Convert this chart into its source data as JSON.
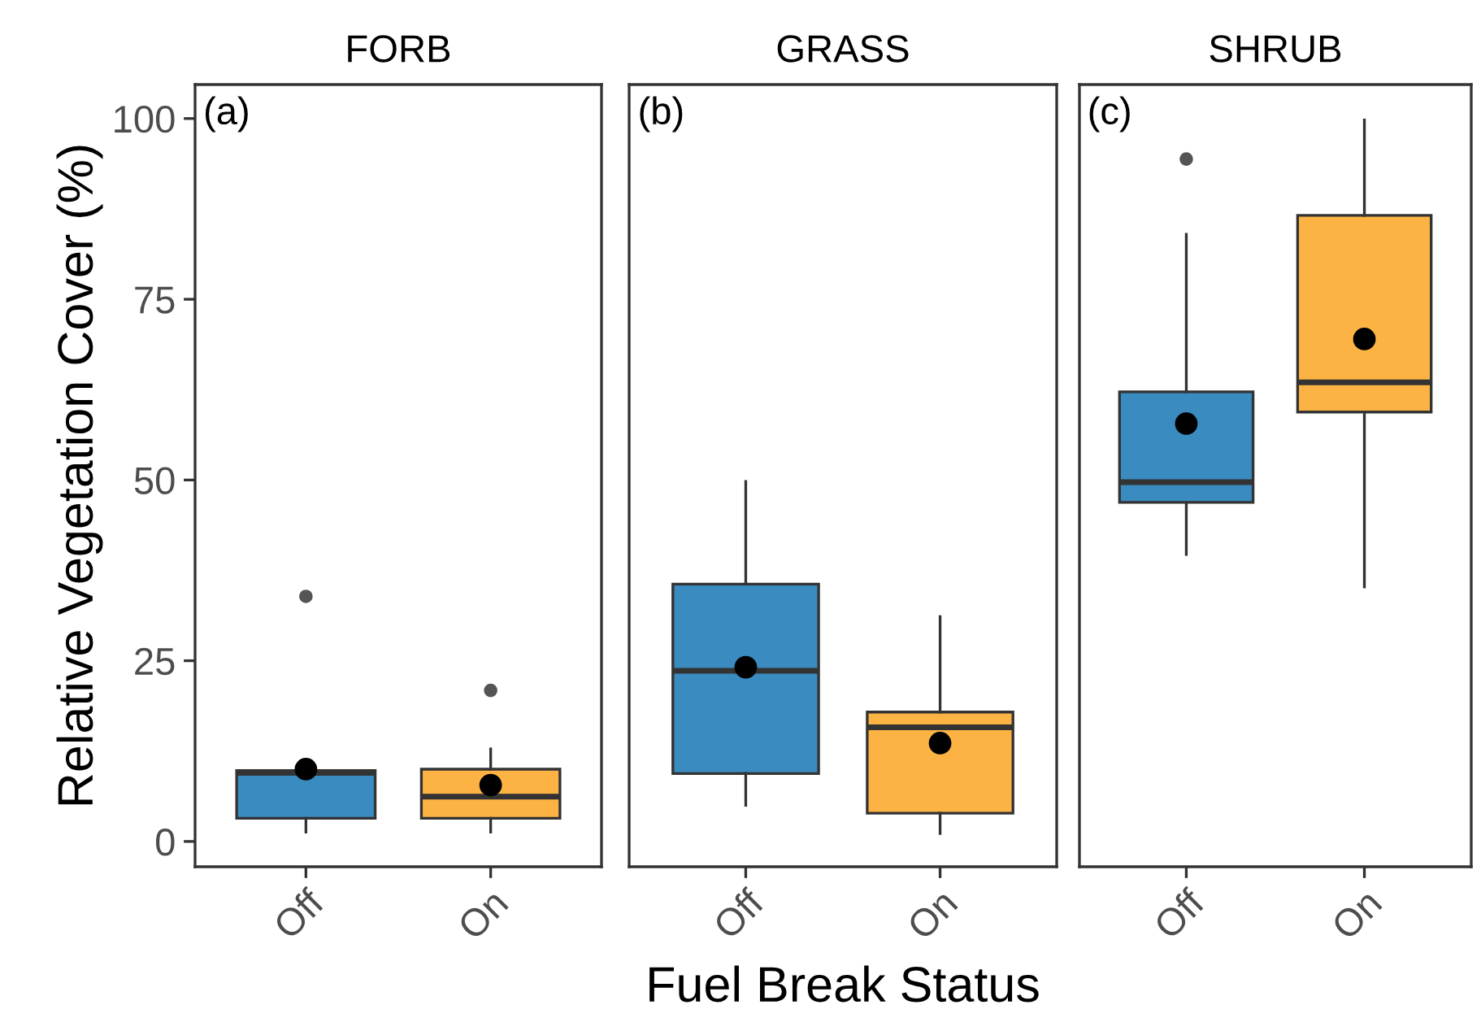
{
  "chart_data": [
    {
      "type": "box",
      "title": "FORB",
      "ylabel": "Relative Vegetation Cover (%)",
      "annotations": [
        "(a)"
      ],
      "categories": [
        "Off",
        "On"
      ],
      "colors": [
        "#3a8bc0",
        "#fdb344"
      ],
      "ylim": [
        -3.5,
        104.7
      ],
      "yticks": [
        0,
        25,
        50,
        75,
        100
      ],
      "grid": false,
      "boxes": [
        {
          "low": 1.3,
          "q1": 3.2,
          "median": 9.5,
          "q3": 9.8,
          "high": 9.8,
          "mean": 10.0,
          "outliers": [
            33.9
          ]
        },
        {
          "low": 1.3,
          "q1": 3.2,
          "median": 6.2,
          "q3": 10.0,
          "high": 12.8,
          "mean": 7.8,
          "outliers": [
            20.9
          ]
        }
      ]
    },
    {
      "type": "box",
      "title": "GRASS",
      "xlabel": "Fuel Break Status",
      "annotations": [
        "(b)"
      ],
      "categories": [
        "Off",
        "On"
      ],
      "colors": [
        "#3a8bc0",
        "#fdb344"
      ],
      "ylim": [
        -3.5,
        104.7
      ],
      "tick_labels": "x",
      "grid": false,
      "boxes": [
        {
          "low": 5.0,
          "q1": 9.4,
          "median": 23.6,
          "q3": 35.6,
          "high": 49.8,
          "mean": 24.1
        },
        {
          "low": 1.1,
          "q1": 3.9,
          "median": 15.8,
          "q3": 17.9,
          "high": 31.1,
          "mean": 13.6
        }
      ]
    },
    {
      "type": "box",
      "title": "SHRUB",
      "annotations": [
        "(c)"
      ],
      "categories": [
        "Off",
        "On"
      ],
      "colors": [
        "#3a8bc0",
        "#fdb344"
      ],
      "ylim": [
        -3.5,
        104.7
      ],
      "tick_labels": "x",
      "grid": false,
      "boxes": [
        {
          "low": 39.7,
          "q1": 46.9,
          "median": 49.7,
          "q3": 62.2,
          "high": 84.0,
          "mean": 57.8,
          "outliers": [
            94.4
          ]
        },
        {
          "low": 35.2,
          "q1": 59.4,
          "median": 63.5,
          "q3": 86.6,
          "high": 99.8,
          "mean": 69.5
        }
      ]
    }
  ]
}
